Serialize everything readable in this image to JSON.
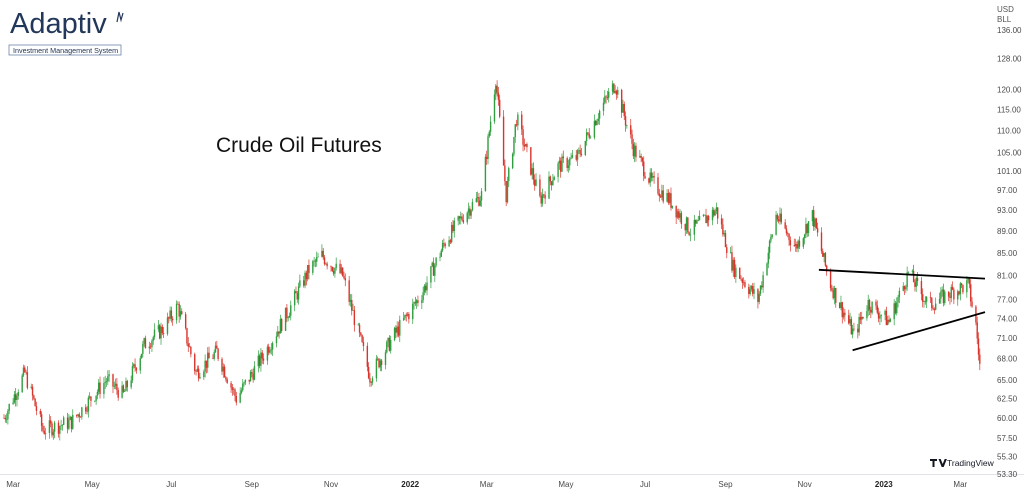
{
  "logo": {
    "name": "Adaptiv",
    "tagline": "Investment Management System"
  },
  "chart_data": {
    "type": "candlestick",
    "title": "Crude Oil Futures",
    "currency": "USD",
    "unit": "BLL",
    "y_scale": "log",
    "ylim": [
      53.3,
      136.0
    ],
    "y_ticks": [
      "136.00",
      "128.00",
      "120.00",
      "115.00",
      "110.00",
      "105.00",
      "101.00",
      "97.00",
      "93.00",
      "89.00",
      "85.00",
      "81.00",
      "77.00",
      "74.00",
      "71.00",
      "68.00",
      "65.00",
      "62.50",
      "60.00",
      "57.50",
      "55.30",
      "53.30"
    ],
    "x_ticks": [
      "Mar",
      "May",
      "Jul",
      "Sep",
      "Nov",
      "2022",
      "Mar",
      "May",
      "Jul",
      "Sep",
      "Nov",
      "2023",
      "Mar"
    ],
    "x_range": [
      "2021-02-22",
      "2023-03-20"
    ],
    "series": [
      {
        "x": [
          "2021-02-22",
          "2021-03-10",
          "2021-03-24",
          "2021-04-15",
          "2021-05-12",
          "2021-05-25",
          "2021-06-10",
          "2021-06-25",
          "2021-07-06",
          "2021-07-20",
          "2021-08-05",
          "2021-08-20",
          "2021-09-10",
          "2021-09-30",
          "2021-10-15",
          "2021-10-25",
          "2021-11-10",
          "2021-11-26",
          "2021-12-01",
          "2021-12-20",
          "2022-01-10",
          "2022-01-28",
          "2022-02-14",
          "2022-02-25",
          "2022-03-08",
          "2022-03-16",
          "2022-03-24",
          "2022-04-11",
          "2022-04-25",
          "2022-05-10",
          "2022-05-25",
          "2022-06-08",
          "2022-06-22",
          "2022-07-05",
          "2022-07-20",
          "2022-08-05",
          "2022-08-25",
          "2022-09-07",
          "2022-09-26",
          "2022-10-10",
          "2022-10-25",
          "2022-11-07",
          "2022-11-20",
          "2022-12-09",
          "2022-12-20",
          "2023-01-05",
          "2023-01-20",
          "2023-02-05",
          "2023-02-20",
          "2023-03-07",
          "2023-03-13",
          "2023-03-16"
        ],
        "y": [
          60.0,
          66.0,
          58.5,
          59.5,
          65.0,
          63.0,
          70.0,
          72.5,
          76.0,
          66.0,
          69.0,
          62.5,
          68.5,
          75.5,
          82.0,
          84.5,
          81.0,
          69.0,
          65.5,
          71.5,
          78.0,
          87.0,
          93.0,
          96.0,
          123.0,
          96.0,
          113.0,
          95.0,
          102.0,
          104.0,
          113.5,
          121.5,
          106.0,
          99.0,
          95.0,
          89.0,
          93.0,
          82.5,
          77.0,
          92.0,
          86.0,
          92.0,
          80.0,
          71.5,
          76.5,
          73.5,
          81.5,
          76.0,
          78.0,
          79.5,
          73.0,
          67.0
        ]
      }
    ],
    "trendlines": [
      {
        "from": [
          "2022-11-12",
          82.0
        ],
        "to": [
          "2023-03-20",
          80.5
        ]
      },
      {
        "from": [
          "2022-12-08",
          69.2
        ],
        "to": [
          "2023-03-20",
          75.0
        ]
      }
    ],
    "up_color": "#2e9e3e",
    "down_color": "#d9342b",
    "trendline_color": "#000000",
    "watermark": "TradingView"
  }
}
